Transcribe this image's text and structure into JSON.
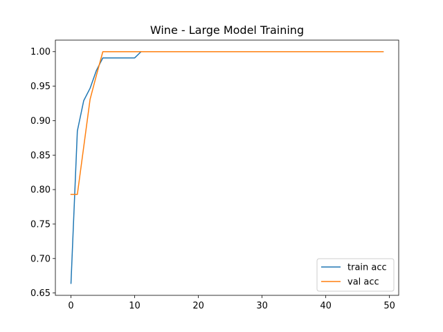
{
  "chart_data": {
    "type": "line",
    "title": "Wine - Large Model Training",
    "xlabel": "",
    "ylabel": "",
    "xlim": [
      -2.45,
      51.45
    ],
    "ylim": [
      0.6466,
      1.0168
    ],
    "xticks": [
      0,
      10,
      20,
      30,
      40,
      50
    ],
    "yticks": [
      0.65,
      0.7,
      0.75,
      0.8,
      0.85,
      0.9,
      0.95,
      1.0
    ],
    "ytick_labels": [
      "0.65",
      "0.70",
      "0.75",
      "0.80",
      "0.85",
      "0.90",
      "0.95",
      "1.00"
    ],
    "grid": false,
    "legend_position": "lower-right",
    "series": [
      {
        "name": "train acc",
        "color": "#1f77b4",
        "x": [
          0,
          1,
          2,
          3,
          4,
          5,
          6,
          7,
          8,
          9,
          10,
          11,
          12,
          13,
          14,
          15,
          16,
          17,
          18,
          19,
          20,
          21,
          22,
          23,
          24,
          25,
          26,
          27,
          28,
          29,
          30,
          31,
          32,
          33,
          34,
          35,
          36,
          37,
          38,
          39,
          40,
          41,
          42,
          43,
          44,
          45,
          46,
          47,
          48,
          49
        ],
        "y": [
          0.664,
          0.885,
          0.929,
          0.947,
          0.973,
          0.991,
          0.991,
          0.991,
          0.991,
          0.991,
          0.991,
          1.0,
          1.0,
          1.0,
          1.0,
          1.0,
          1.0,
          1.0,
          1.0,
          1.0,
          1.0,
          1.0,
          1.0,
          1.0,
          1.0,
          1.0,
          1.0,
          1.0,
          1.0,
          1.0,
          1.0,
          1.0,
          1.0,
          1.0,
          1.0,
          1.0,
          1.0,
          1.0,
          1.0,
          1.0,
          1.0,
          1.0,
          1.0,
          1.0,
          1.0,
          1.0,
          1.0,
          1.0,
          1.0,
          1.0
        ]
      },
      {
        "name": "val acc",
        "color": "#ff7f0e",
        "x": [
          0,
          1,
          2,
          3,
          4,
          5,
          6,
          7,
          8,
          9,
          10,
          11,
          12,
          13,
          14,
          15,
          16,
          17,
          18,
          19,
          20,
          21,
          22,
          23,
          24,
          25,
          26,
          27,
          28,
          29,
          30,
          31,
          32,
          33,
          34,
          35,
          36,
          37,
          38,
          39,
          40,
          41,
          42,
          43,
          44,
          45,
          46,
          47,
          48,
          49
        ],
        "y": [
          0.793,
          0.793,
          0.862,
          0.931,
          0.966,
          1.0,
          1.0,
          1.0,
          1.0,
          1.0,
          1.0,
          1.0,
          1.0,
          1.0,
          1.0,
          1.0,
          1.0,
          1.0,
          1.0,
          1.0,
          1.0,
          1.0,
          1.0,
          1.0,
          1.0,
          1.0,
          1.0,
          1.0,
          1.0,
          1.0,
          1.0,
          1.0,
          1.0,
          1.0,
          1.0,
          1.0,
          1.0,
          1.0,
          1.0,
          1.0,
          1.0,
          1.0,
          1.0,
          1.0,
          1.0,
          1.0,
          1.0,
          1.0,
          1.0,
          1.0
        ]
      }
    ]
  }
}
